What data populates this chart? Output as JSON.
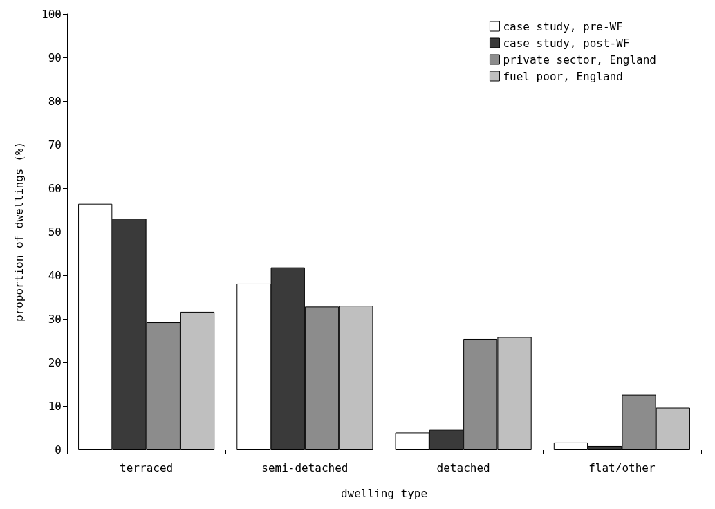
{
  "chart_data": {
    "type": "bar",
    "xlabel": "dwelling type",
    "ylabel": "proportion of dwellings (%)",
    "categories": [
      "terraced",
      "semi-detached",
      "detached",
      "flat/other"
    ],
    "series": [
      {
        "name": "case study, pre-WF",
        "color": "#ffffff",
        "values": [
          56.4,
          38.1,
          3.9,
          1.6
        ]
      },
      {
        "name": "case study, post-WF",
        "color": "#3a3a3a",
        "values": [
          53.0,
          41.8,
          4.5,
          0.8
        ]
      },
      {
        "name": "private sector, England",
        "color": "#8c8c8c",
        "values": [
          29.2,
          32.8,
          25.4,
          12.6
        ]
      },
      {
        "name": "fuel poor, England",
        "color": "#bfbfbf",
        "values": [
          31.6,
          33.0,
          25.8,
          9.6
        ]
      }
    ],
    "ylim": [
      0,
      100
    ],
    "yticks": [
      0,
      10,
      20,
      30,
      40,
      50,
      60,
      70,
      80,
      90,
      100
    ],
    "grid": false,
    "legend": "top right"
  }
}
